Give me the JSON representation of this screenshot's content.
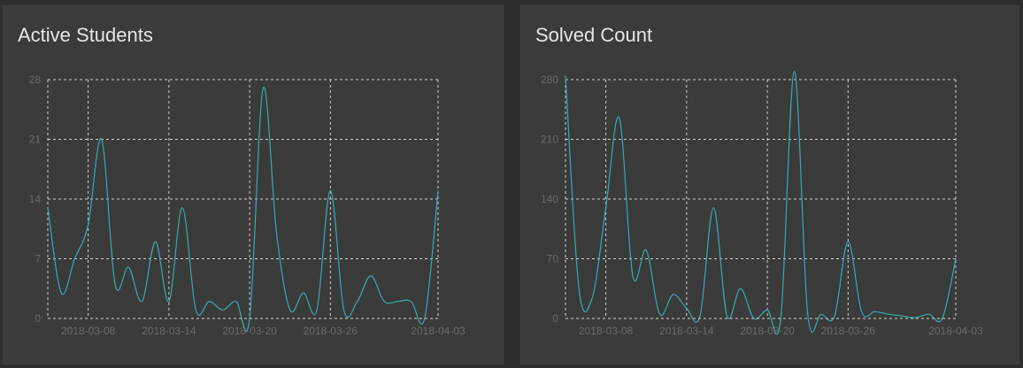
{
  "panels": [
    {
      "title": "Active Students"
    },
    {
      "title": "Solved Count"
    }
  ],
  "colors": {
    "line": "#3aa8b3",
    "grid": "#d0d0d0",
    "tick": "#6b6b6b",
    "panel": "#3b3b3b",
    "background": "#2e2e2e"
  },
  "chart_data": [
    {
      "type": "line",
      "title": "Active Students",
      "xlabel": "",
      "ylabel": "",
      "x_ticks": [
        "2018-03-08",
        "2018-03-14",
        "2018-03-20",
        "2018-03-26",
        "2018-04-03"
      ],
      "y_ticks": [
        0,
        7,
        14,
        21,
        28
      ],
      "xlim": [
        "2018-03-05",
        "2018-04-03"
      ],
      "ylim": [
        0,
        28
      ],
      "grid": true,
      "series": [
        {
          "x": [
            "2018-03-05",
            "2018-03-06",
            "2018-03-07",
            "2018-03-08",
            "2018-03-09",
            "2018-03-10",
            "2018-03-11",
            "2018-03-12",
            "2018-03-13",
            "2018-03-14",
            "2018-03-15",
            "2018-03-16",
            "2018-03-17",
            "2018-03-18",
            "2018-03-19",
            "2018-03-20",
            "2018-03-21",
            "2018-03-22",
            "2018-03-23",
            "2018-03-24",
            "2018-03-25",
            "2018-03-26",
            "2018-03-27",
            "2018-03-28",
            "2018-03-29",
            "2018-03-30",
            "2018-03-31",
            "2018-04-01",
            "2018-04-02",
            "2018-04-03"
          ],
          "values": [
            13,
            3,
            7,
            11,
            21,
            4,
            6,
            2,
            9,
            2,
            13,
            1,
            2,
            1,
            2,
            0,
            27,
            10,
            1,
            3,
            1,
            15,
            1,
            2,
            5,
            2,
            2,
            2,
            0,
            15
          ]
        }
      ]
    },
    {
      "type": "line",
      "title": "Solved Count",
      "xlabel": "",
      "ylabel": "",
      "x_ticks": [
        "2018-03-08",
        "2018-03-14",
        "2018-03-20",
        "2018-03-26",
        "2018-04-03"
      ],
      "y_ticks": [
        0,
        70,
        140,
        210,
        280
      ],
      "xlim": [
        "2018-03-05",
        "2018-04-03"
      ],
      "ylim": [
        0,
        280
      ],
      "grid": true,
      "series": [
        {
          "x": [
            "2018-03-05",
            "2018-03-06",
            "2018-03-07",
            "2018-03-08",
            "2018-03-09",
            "2018-03-10",
            "2018-03-11",
            "2018-03-12",
            "2018-03-13",
            "2018-03-14",
            "2018-03-15",
            "2018-03-16",
            "2018-03-17",
            "2018-03-18",
            "2018-03-19",
            "2018-03-20",
            "2018-03-21",
            "2018-03-22",
            "2018-03-23",
            "2018-03-24",
            "2018-03-25",
            "2018-03-26",
            "2018-03-27",
            "2018-03-28",
            "2018-03-29",
            "2018-03-30",
            "2018-03-31",
            "2018-04-01",
            "2018-04-02",
            "2018-04-03"
          ],
          "values": [
            285,
            35,
            25,
            130,
            235,
            50,
            80,
            5,
            28,
            12,
            3,
            130,
            3,
            35,
            0,
            10,
            0,
            290,
            5,
            5,
            3,
            90,
            8,
            8,
            5,
            3,
            1,
            5,
            0,
            70
          ]
        }
      ]
    }
  ]
}
